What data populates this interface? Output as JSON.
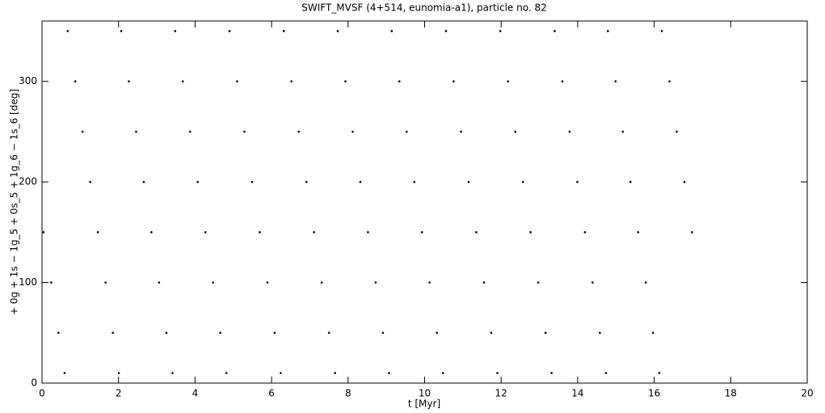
{
  "chart_data": {
    "type": "scatter",
    "title": "SWIFT_MVSF (4+514, eunomia-a1), particle no. 82",
    "xlabel": "t [Myr]",
    "ylabel": "+ 0g + 1s − 1g_5 + 0s_5 + 1g_6 − 1s_6 [deg]",
    "color": "#000000",
    "xlim": [
      0,
      20
    ],
    "ylim": [
      0,
      360
    ],
    "xticks": [
      0,
      2,
      4,
      6,
      8,
      10,
      12,
      14,
      16,
      18,
      20
    ],
    "yticks": [
      0,
      100,
      200,
      300
    ],
    "x": [
      0.04,
      0.24,
      0.43,
      0.59,
      0.67,
      0.87,
      1.06,
      1.26,
      1.46,
      1.66,
      1.85,
      2.01,
      2.07,
      2.27,
      2.46,
      2.66,
      2.86,
      3.06,
      3.25,
      3.41,
      3.48,
      3.68,
      3.87,
      4.07,
      4.27,
      4.47,
      4.66,
      4.82,
      4.9,
      5.1,
      5.29,
      5.49,
      5.69,
      5.89,
      6.08,
      6.24,
      6.32,
      6.52,
      6.71,
      6.91,
      7.11,
      7.31,
      7.5,
      7.66,
      7.73,
      7.93,
      8.12,
      8.32,
      8.52,
      8.72,
      8.91,
      9.07,
      9.14,
      9.34,
      9.53,
      9.73,
      9.93,
      10.13,
      10.32,
      10.48,
      10.56,
      10.76,
      10.95,
      11.15,
      11.35,
      11.55,
      11.74,
      11.9,
      11.98,
      12.18,
      12.37,
      12.57,
      12.77,
      12.97,
      13.16,
      13.32,
      13.4,
      13.6,
      13.79,
      13.99,
      14.19,
      14.39,
      14.58,
      14.74,
      14.79,
      14.99,
      15.18,
      15.38,
      15.58,
      15.78,
      15.97,
      16.13,
      16.2,
      16.4,
      16.59,
      16.79,
      16.99
    ],
    "values": [
      150,
      100,
      50,
      10,
      350,
      300,
      250,
      200,
      150,
      100,
      50,
      10,
      350,
      300,
      250,
      200,
      150,
      100,
      50,
      10,
      350,
      300,
      250,
      200,
      150,
      100,
      50,
      10,
      350,
      300,
      250,
      200,
      150,
      100,
      50,
      10,
      350,
      300,
      250,
      200,
      150,
      100,
      50,
      10,
      350,
      300,
      250,
      200,
      150,
      100,
      50,
      10,
      350,
      300,
      250,
      200,
      150,
      100,
      50,
      10,
      350,
      300,
      250,
      200,
      150,
      100,
      50,
      10,
      350,
      300,
      250,
      200,
      150,
      100,
      50,
      10,
      350,
      300,
      250,
      200,
      150,
      100,
      50,
      10,
      350,
      300,
      250,
      200,
      150,
      100,
      50,
      10,
      350,
      300,
      250,
      200,
      150
    ]
  }
}
